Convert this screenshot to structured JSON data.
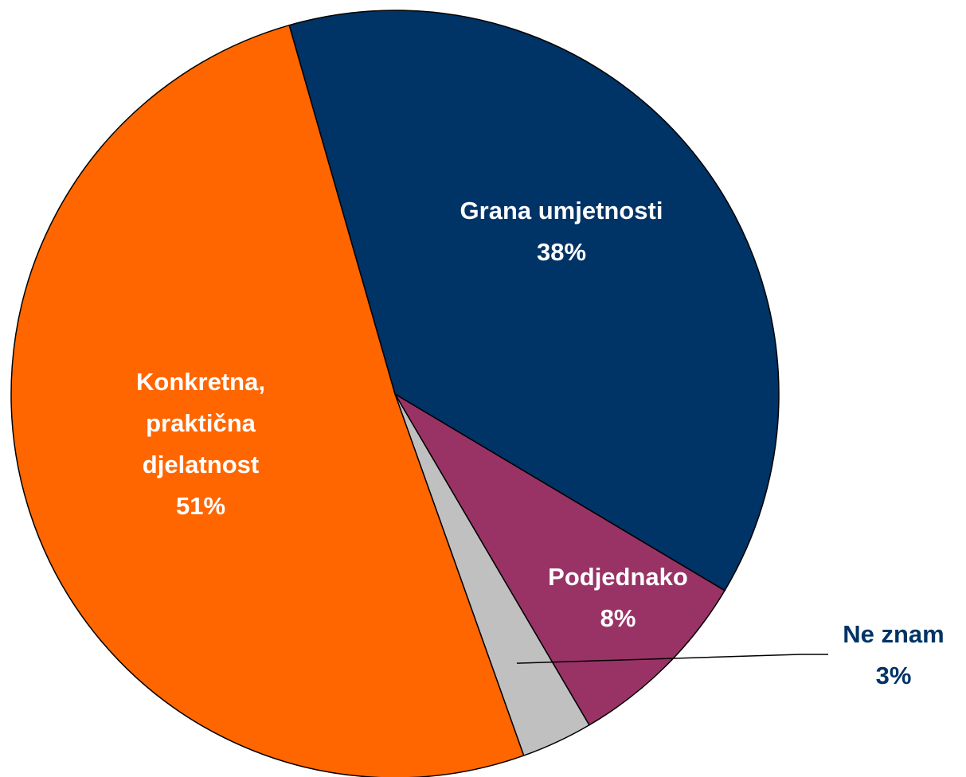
{
  "chart_data": {
    "type": "pie",
    "categories": [
      "Grana umjetnosti",
      "Podjednako",
      "Ne znam",
      "Konkretna, praktična djelatnost"
    ],
    "values": [
      38,
      8,
      3,
      51
    ],
    "value_labels": [
      "38%",
      "8%",
      "3%",
      "51%"
    ],
    "colors": [
      "#003366",
      "#993366",
      "#c0c0c0",
      "#ff6600"
    ],
    "start_angle": -16
  }
}
